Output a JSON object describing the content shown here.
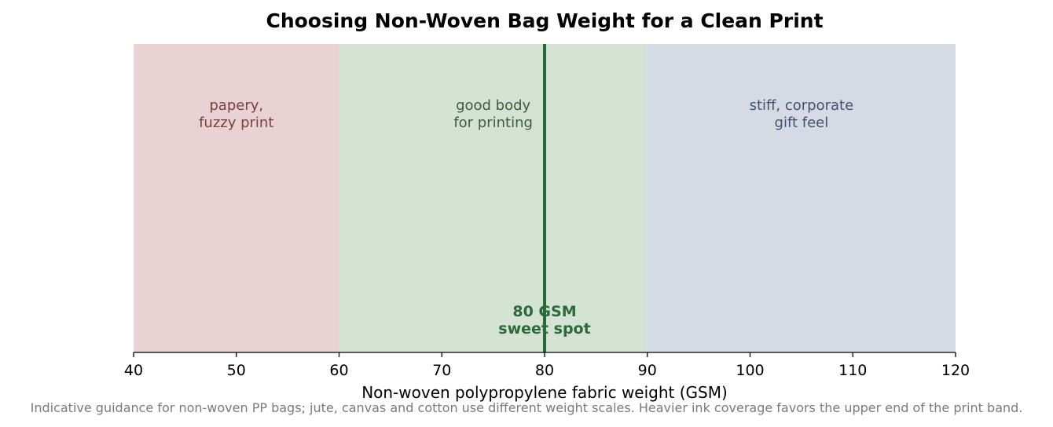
{
  "chart_data": {
    "type": "bar",
    "title": "Choosing Non-Woven Bag Weight for a Clean Print",
    "xlabel": "Non-woven polypropylene fabric weight (GSM)",
    "ylabel": "",
    "xlim": [
      40,
      120
    ],
    "xticks": [
      "40",
      "50",
      "60",
      "70",
      "80",
      "90",
      "100",
      "110",
      "120"
    ],
    "grid": false,
    "bands": [
      {
        "start": 40,
        "end": 60,
        "label_lines": [
          "papery,",
          "fuzzy print"
        ],
        "fill": "#e8d2d3",
        "text_color": "#7a3f44"
      },
      {
        "start": 60,
        "end": 90,
        "label_lines": [
          "good body",
          "for printing"
        ],
        "fill": "#d5e3d5",
        "text_color": "#3d5b3d"
      },
      {
        "start": 90,
        "end": 120,
        "label_lines": [
          "stiff, corporate",
          "gift feel"
        ],
        "fill": "#d6dae5",
        "text_color": "#46506e"
      }
    ],
    "marker": {
      "x": 80,
      "label_lines": [
        "80 GSM",
        "sweet spot"
      ],
      "color": "#2a6a39"
    },
    "caption": "Indicative guidance for non-woven PP bags; jute, canvas and cotton use different weight scales. Heavier ink coverage favors the upper end of the print band."
  }
}
